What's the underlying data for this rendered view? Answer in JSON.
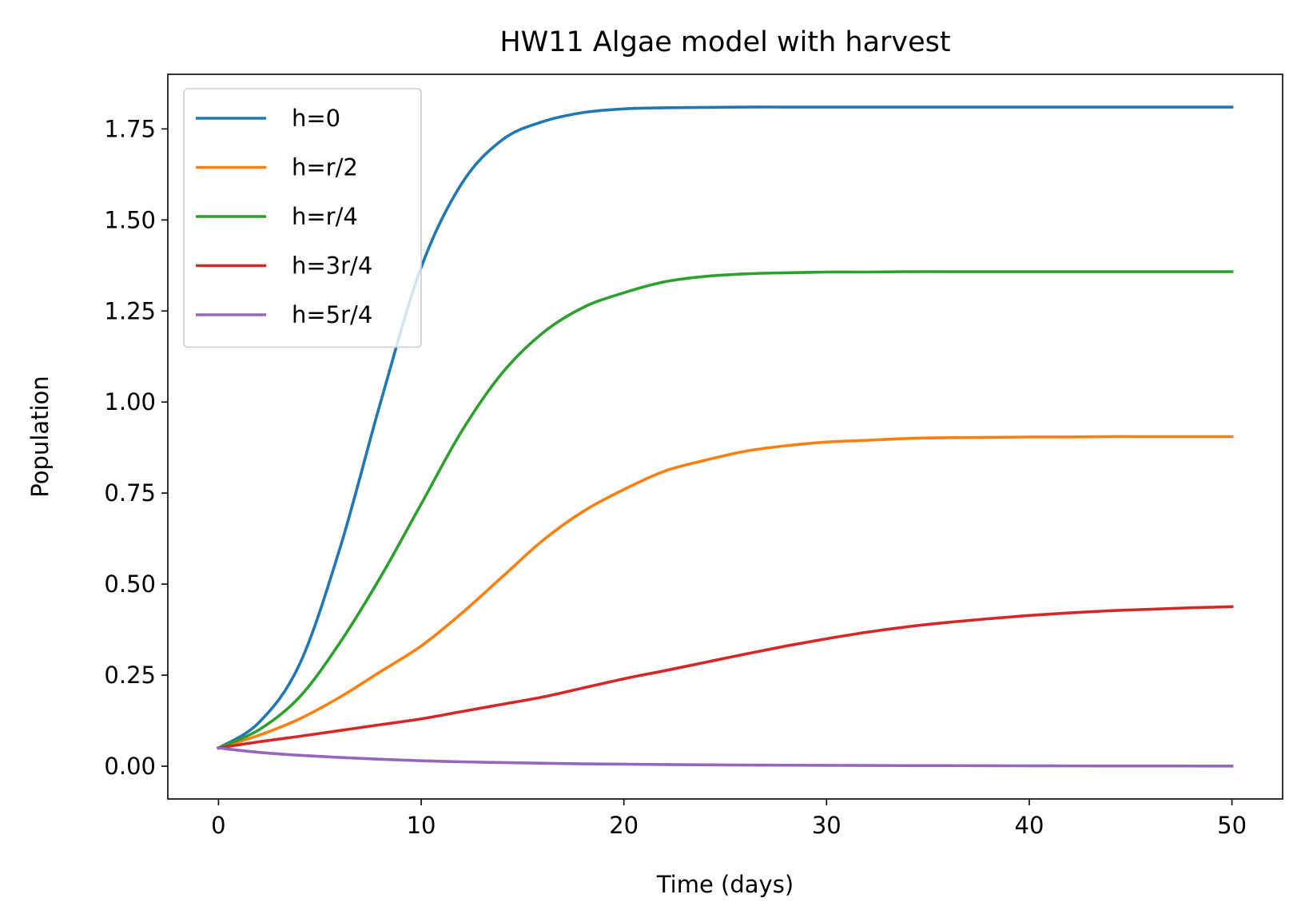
{
  "chart_data": {
    "type": "line",
    "title": "HW11 Algae model with harvest",
    "xlabel": "Time (days)",
    "ylabel": "Population",
    "xlim": [
      -2.5,
      52.5
    ],
    "ylim": [
      -0.09,
      1.9
    ],
    "xticks": [
      0,
      10,
      20,
      30,
      40,
      50
    ],
    "xtick_labels": [
      "0",
      "10",
      "20",
      "30",
      "40",
      "50"
    ],
    "yticks": [
      0.0,
      0.25,
      0.5,
      0.75,
      1.0,
      1.25,
      1.5,
      1.75
    ],
    "ytick_labels": [
      "0.00",
      "0.25",
      "0.50",
      "0.75",
      "1.00",
      "1.25",
      "1.50",
      "1.75"
    ],
    "grid": false,
    "legend_position": "upper-left",
    "x": [
      0,
      2,
      4,
      6,
      8,
      10,
      12,
      14,
      16,
      18,
      20,
      22,
      24,
      26,
      28,
      30,
      32,
      34,
      36,
      38,
      40,
      42,
      44,
      46,
      48,
      50
    ],
    "series": [
      {
        "name": "h=0",
        "color": "#1f77b4",
        "values": [
          0.05,
          0.12,
          0.28,
          0.6,
          1.0,
          1.37,
          1.6,
          1.72,
          1.77,
          1.795,
          1.805,
          1.808,
          1.809,
          1.81,
          1.81,
          1.81,
          1.81,
          1.81,
          1.81,
          1.81,
          1.81,
          1.81,
          1.81,
          1.81,
          1.81,
          1.81
        ]
      },
      {
        "name": "h=r/2",
        "color": "#ff7f0e",
        "values": [
          0.05,
          0.085,
          0.13,
          0.19,
          0.26,
          0.33,
          0.42,
          0.52,
          0.62,
          0.7,
          0.76,
          0.81,
          0.84,
          0.865,
          0.88,
          0.89,
          0.895,
          0.9,
          0.902,
          0.903,
          0.904,
          0.904,
          0.905,
          0.905,
          0.905,
          0.905
        ]
      },
      {
        "name": "h=r/4",
        "color": "#2ca02c",
        "values": [
          0.05,
          0.1,
          0.19,
          0.34,
          0.52,
          0.72,
          0.92,
          1.08,
          1.19,
          1.26,
          1.3,
          1.33,
          1.345,
          1.352,
          1.355,
          1.357,
          1.357,
          1.358,
          1.358,
          1.358,
          1.358,
          1.358,
          1.358,
          1.358,
          1.358,
          1.358
        ]
      },
      {
        "name": "h=3r/4",
        "color": "#d62728",
        "values": [
          0.05,
          0.067,
          0.082,
          0.098,
          0.114,
          0.13,
          0.15,
          0.17,
          0.19,
          0.215,
          0.24,
          0.262,
          0.285,
          0.308,
          0.33,
          0.35,
          0.368,
          0.383,
          0.395,
          0.405,
          0.414,
          0.421,
          0.427,
          0.431,
          0.435,
          0.438
        ]
      },
      {
        "name": "h=5r/4",
        "color": "#9467bd",
        "values": [
          0.05,
          0.038,
          0.03,
          0.024,
          0.019,
          0.015,
          0.012,
          0.01,
          0.008,
          0.0065,
          0.0055,
          0.0045,
          0.0038,
          0.0032,
          0.0027,
          0.0023,
          0.0019,
          0.0016,
          0.0014,
          0.0012,
          0.001,
          0.0008,
          0.0007,
          0.0006,
          0.0005,
          0.0004
        ]
      }
    ]
  }
}
